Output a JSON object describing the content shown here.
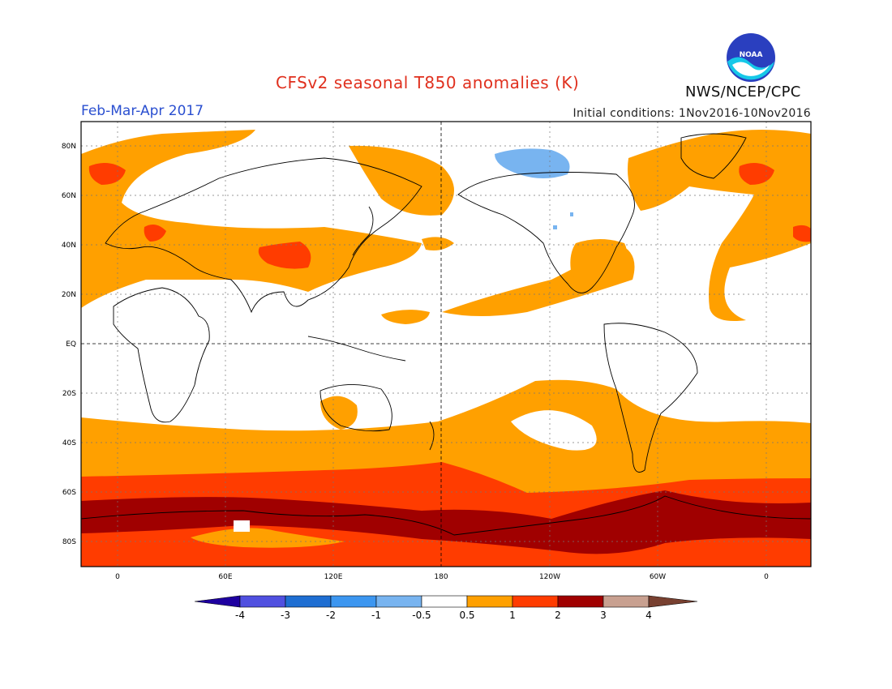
{
  "title": "CFSv2 seasonal T850 anomalies (K)",
  "period": "Feb-Mar-Apr 2017",
  "initial_conditions": "Initial conditions: 1Nov2016-10Nov2016",
  "agency": "NWS/NCEP/CPC",
  "logo_text": "NOAA",
  "colors": {
    "title": "#e0301e",
    "period": "#2a4fd0",
    "ocean_none": "#ffffff",
    "bin_0_5_1": "#ffa000",
    "bin_1_2": "#ff3c00",
    "bin_2_3": "#a00000",
    "bin_neg_1_0_5": "#78b4f0"
  },
  "lat_labels": [
    "80N",
    "60N",
    "40N",
    "20N",
    "EQ",
    "20S",
    "40S",
    "60S",
    "80S"
  ],
  "lon_labels": [
    "0",
    "60E",
    "120E",
    "180",
    "120W",
    "60W",
    "0"
  ],
  "colorbar": {
    "labels": [
      "-4",
      "-3",
      "-2",
      "-1",
      "-0.5",
      "0.5",
      "1",
      "2",
      "3",
      "4"
    ],
    "colors": [
      "#1e00a0",
      "#5050e0",
      "#1e6ed2",
      "#3c96f0",
      "#78b4f0",
      "#ffffff",
      "#ffa000",
      "#ff3c00",
      "#a00000",
      "#c8a090",
      "#784030"
    ]
  },
  "legend_position": "bottom"
}
